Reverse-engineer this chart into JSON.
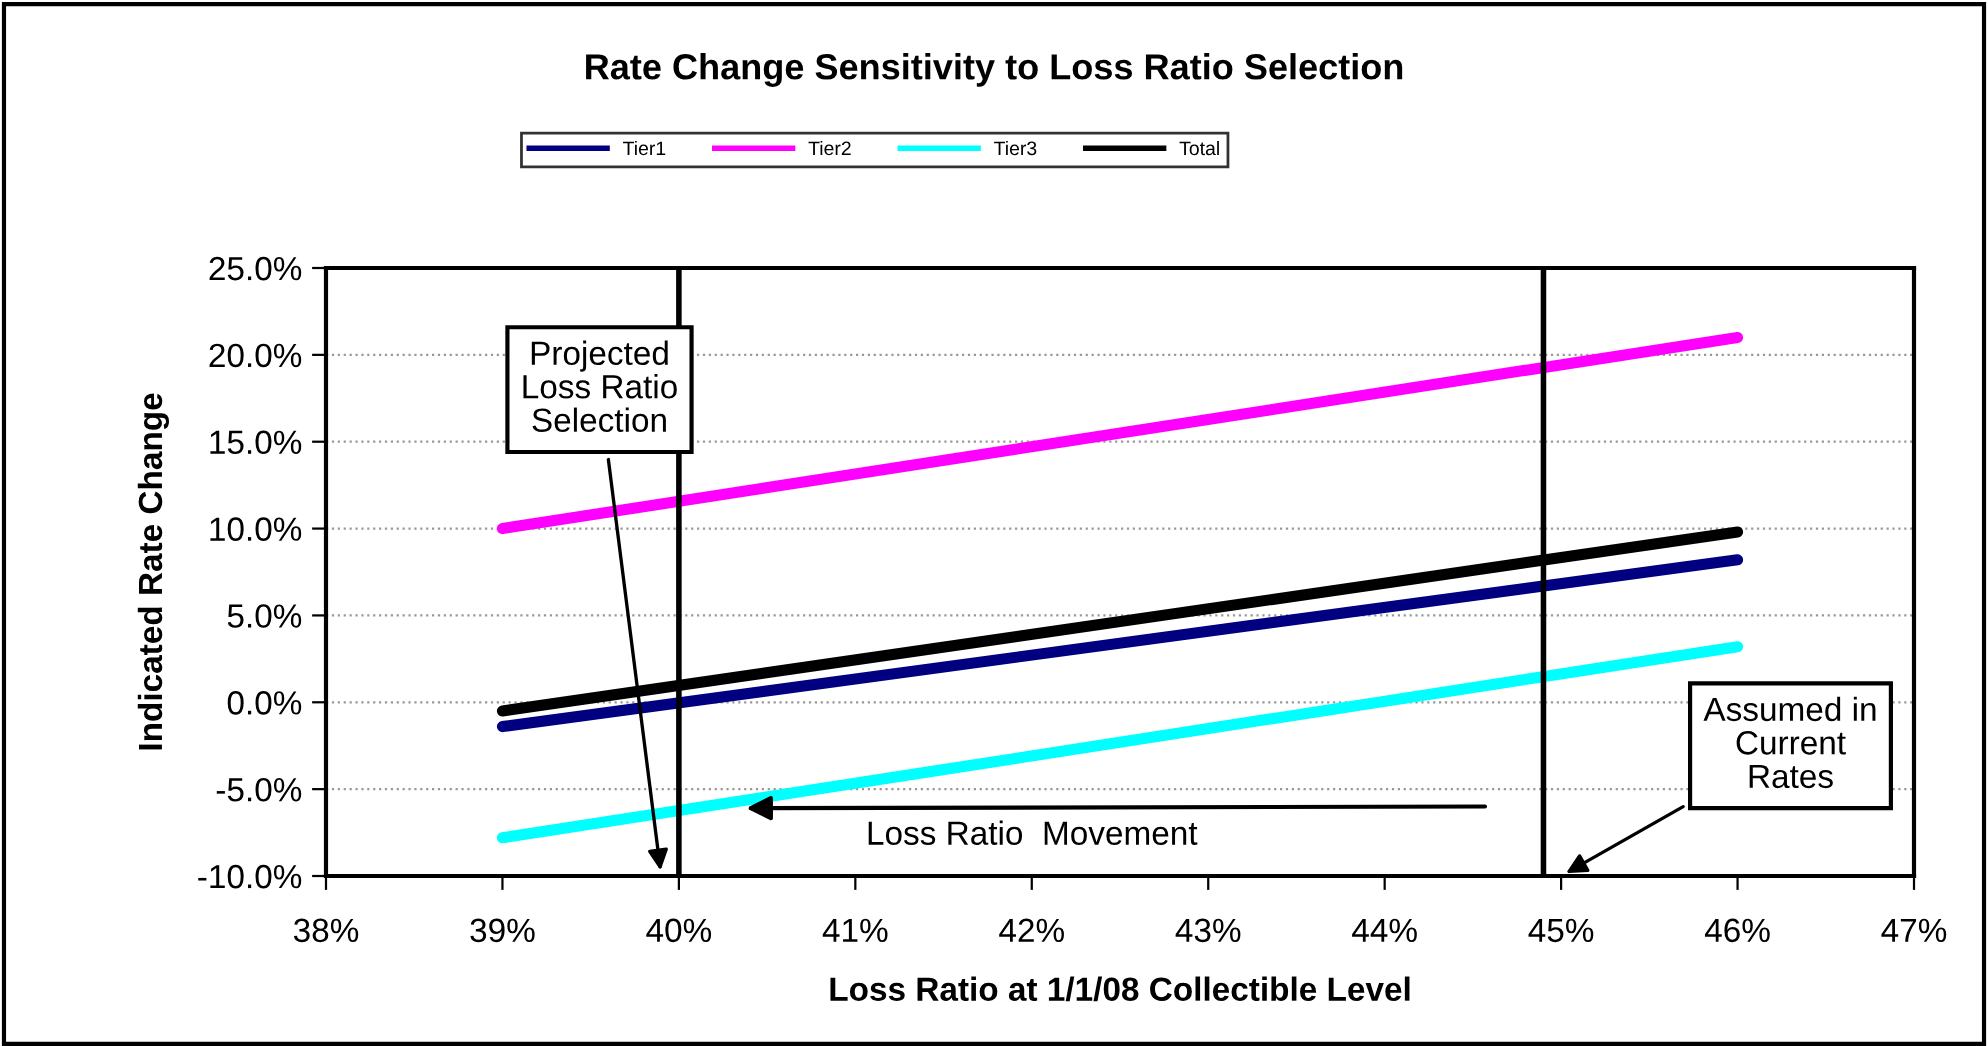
{
  "chart_data": {
    "type": "line",
    "title": "Rate Change Sensitivity to Loss Ratio Selection",
    "xlabel": "Loss Ratio at 1/1/08 Collectible Level",
    "ylabel": "Indicated Rate Change",
    "x": [
      39,
      46
    ],
    "series": [
      {
        "name": "Tier1",
        "color": "#000080",
        "values": [
          -1.4,
          8.2
        ]
      },
      {
        "name": "Tier2",
        "color": "#ff00ff",
        "values": [
          10.0,
          21.0
        ]
      },
      {
        "name": "Tier3",
        "color": "#00ffff",
        "values": [
          -7.8,
          3.2
        ]
      },
      {
        "name": "Total",
        "color": "#000000",
        "values": [
          -0.5,
          9.8
        ]
      }
    ],
    "xlim": [
      38,
      47
    ],
    "xticks": [
      {
        "value": 38,
        "label": "38%"
      },
      {
        "value": 39,
        "label": "39%"
      },
      {
        "value": 40,
        "label": "40%"
      },
      {
        "value": 41,
        "label": "41%"
      },
      {
        "value": 42,
        "label": "42%"
      },
      {
        "value": 43,
        "label": "43%"
      },
      {
        "value": 44,
        "label": "44%"
      },
      {
        "value": 45,
        "label": "45%"
      },
      {
        "value": 46,
        "label": "46%"
      },
      {
        "value": 47,
        "label": "47%"
      }
    ],
    "ylim": [
      -10,
      25
    ],
    "yticks": [
      {
        "value": -10,
        "label": "-10.0%"
      },
      {
        "value": -5,
        "label": "-5.0%"
      },
      {
        "value": 0,
        "label": "0.0%"
      },
      {
        "value": 5,
        "label": "5.0%"
      },
      {
        "value": 10,
        "label": "10.0%"
      },
      {
        "value": 15,
        "label": "15.0%"
      },
      {
        "value": 20,
        "label": "20.0%"
      },
      {
        "value": 25,
        "label": "25.0%"
      }
    ],
    "ref_lines": [
      {
        "axis": "x",
        "value": 40,
        "color": "#000000"
      },
      {
        "axis": "x",
        "value": 44.9,
        "color": "#000000"
      }
    ],
    "annotations": [
      "Projected\nLoss Ratio\nSelection",
      "Loss Ratio  Movement",
      "Assumed in\nCurrent\nRates"
    ],
    "grid": "y",
    "legend": "top",
    "marker": "none",
    "line_style": "solid"
  }
}
